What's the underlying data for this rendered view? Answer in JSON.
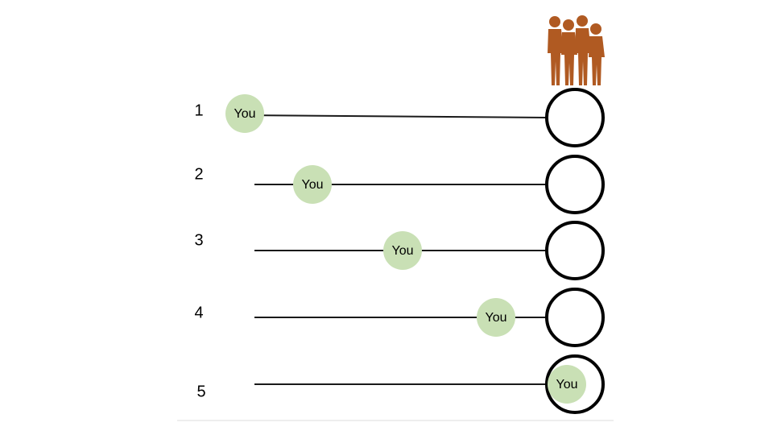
{
  "diagram": {
    "colors": {
      "you_fill": "#c9e0b5",
      "group_icon": "#b05a22",
      "line": "#1a1a1a",
      "group_outline": "#000000"
    },
    "group_icon_name": "group-of-people-silhouette-icon",
    "rows": [
      {
        "label": "1",
        "you_label": "You",
        "position": 0.0
      },
      {
        "label": "2",
        "you_label": "You",
        "position": 0.21
      },
      {
        "label": "3",
        "you_label": "You",
        "position": 0.49
      },
      {
        "label": "4",
        "you_label": "You",
        "position": 0.78
      },
      {
        "label": "5",
        "you_label": "You",
        "position": 1.0
      }
    ]
  }
}
